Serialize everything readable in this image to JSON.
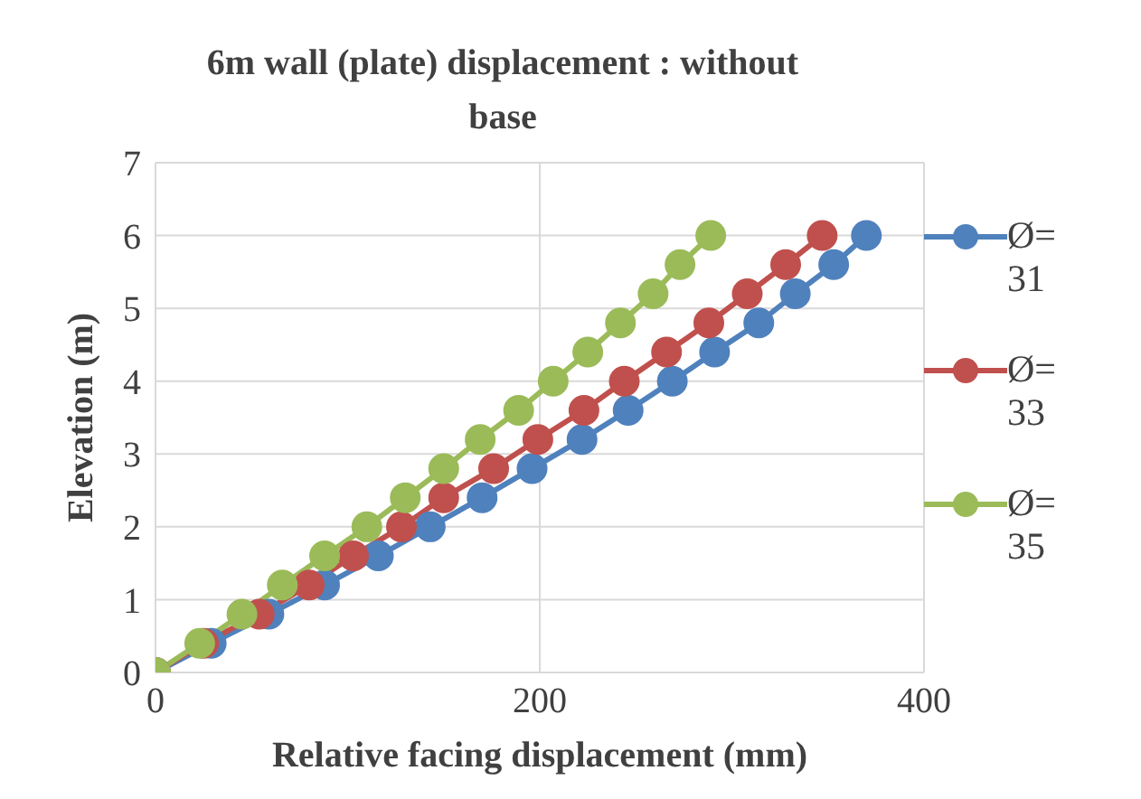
{
  "chart_data": {
    "type": "line",
    "title": "6m wall (plate) displacement : without base",
    "xlabel": "Relative facing displacement (mm)",
    "ylabel": "Elevation (m)",
    "xlim": [
      0,
      400
    ],
    "xticks": [
      0,
      200,
      400
    ],
    "ylim": [
      0,
      7
    ],
    "yticks": [
      0,
      1,
      2,
      3,
      4,
      5,
      6,
      7
    ],
    "grid": true,
    "legend": "right",
    "marker": "circle",
    "series": [
      {
        "name": "Ø= 31",
        "color": "#4f81bd",
        "x": [
          0,
          29,
          59,
          88,
          116,
          143,
          170,
          196,
          222,
          246,
          269,
          291,
          314,
          333,
          353,
          370
        ],
        "values": [
          0,
          0.4,
          0.8,
          1.2,
          1.6,
          2,
          2.4,
          2.8,
          3.2,
          3.6,
          4,
          4.4,
          4.8,
          5.2,
          5.6,
          6
        ]
      },
      {
        "name": "Ø= 33",
        "color": "#c0504d",
        "x": [
          0,
          25,
          54,
          80,
          103,
          128,
          150,
          176,
          199,
          223,
          244,
          266,
          288,
          308,
          328,
          347
        ],
        "values": [
          0,
          0.4,
          0.8,
          1.2,
          1.6,
          2,
          2.4,
          2.8,
          3.2,
          3.6,
          4,
          4.4,
          4.8,
          5.2,
          5.6,
          6
        ]
      },
      {
        "name": "Ø= 35",
        "color": "#9bbb59",
        "x": [
          0,
          23,
          45,
          66,
          88,
          110,
          130,
          150,
          169,
          189,
          207,
          225,
          242,
          259,
          273,
          289
        ],
        "values": [
          0,
          0.4,
          0.8,
          1.2,
          1.6,
          2,
          2.4,
          2.8,
          3.2,
          3.6,
          4,
          4.4,
          4.8,
          5.2,
          5.6,
          6
        ]
      }
    ]
  }
}
